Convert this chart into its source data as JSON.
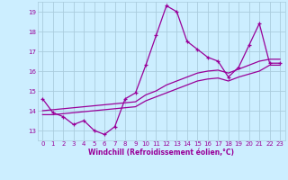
{
  "xlabel": "Windchill (Refroidissement éolien,°C)",
  "bg_color": "#cceeff",
  "line_color": "#990099",
  "grid_color": "#aaccdd",
  "x_hours": [
    0,
    1,
    2,
    3,
    4,
    5,
    6,
    7,
    8,
    9,
    10,
    11,
    12,
    13,
    14,
    15,
    16,
    17,
    18,
    19,
    20,
    21,
    22,
    23
  ],
  "y_main": [
    14.6,
    13.9,
    13.7,
    13.3,
    13.5,
    13.0,
    12.8,
    13.2,
    14.6,
    14.9,
    16.3,
    17.8,
    19.3,
    19.0,
    17.5,
    17.1,
    16.7,
    16.5,
    15.7,
    16.2,
    17.3,
    18.4,
    16.4,
    16.4
  ],
  "y_lo": [
    13.8,
    13.8,
    13.85,
    13.9,
    13.95,
    14.0,
    14.05,
    14.1,
    14.15,
    14.2,
    14.5,
    14.7,
    14.9,
    15.1,
    15.3,
    15.5,
    15.6,
    15.65,
    15.5,
    15.7,
    15.85,
    16.0,
    16.3,
    16.3
  ],
  "y_hi": [
    14.0,
    14.05,
    14.1,
    14.15,
    14.2,
    14.25,
    14.3,
    14.35,
    14.4,
    14.45,
    14.8,
    15.0,
    15.3,
    15.5,
    15.7,
    15.9,
    16.0,
    16.05,
    15.9,
    16.1,
    16.3,
    16.5,
    16.6,
    16.6
  ],
  "ylim": [
    12.5,
    19.5
  ],
  "yticks": [
    13,
    14,
    15,
    16,
    17,
    18,
    19
  ],
  "xlim": [
    -0.5,
    23.5
  ]
}
